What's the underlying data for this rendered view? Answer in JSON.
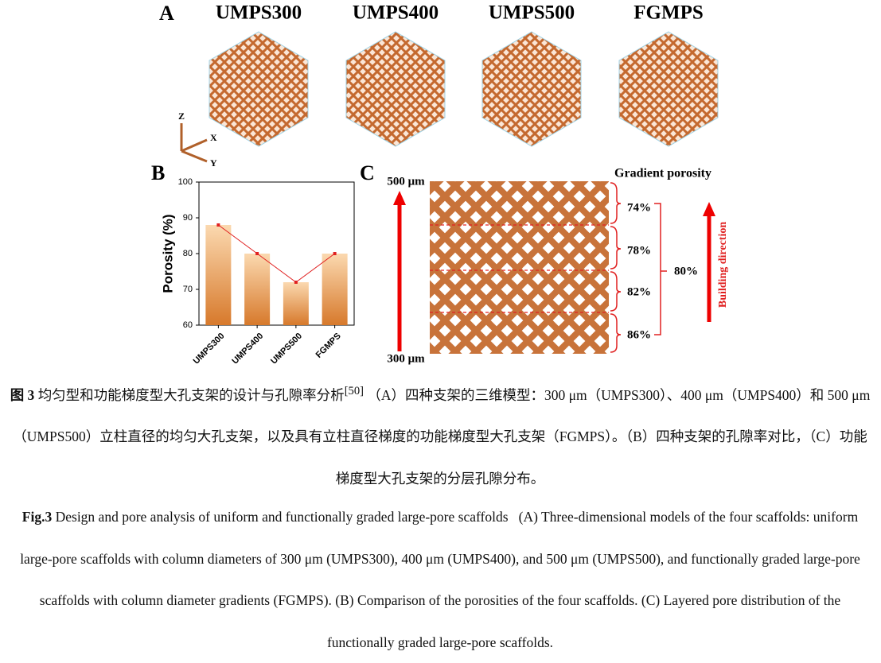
{
  "panel_a": {
    "label": "A",
    "titles": [
      "UMPS300",
      "UMPS400",
      "UMPS500",
      "FGMPS"
    ],
    "axes": [
      "Z",
      "X",
      "Y"
    ]
  },
  "chart_data": {
    "type": "bar",
    "label": "B",
    "ylabel": "Porosity (%)",
    "categories": [
      "UMPS300",
      "UMPS400",
      "UMPS500",
      "FGMPS"
    ],
    "values": [
      88,
      80,
      72,
      80
    ],
    "ylim": [
      60,
      100
    ],
    "yticks": [
      60,
      70,
      80,
      90,
      100
    ],
    "line_color": "#e02020"
  },
  "panel_c": {
    "label": "C",
    "top": "500 μm",
    "bottom": "300 μm",
    "title": "Gradient porosity",
    "layers": [
      "74%",
      "78%",
      "82%",
      "86%"
    ],
    "total": "80%",
    "direction": "Building direction"
  },
  "caption_cn": {
    "label": "图 3",
    "text": "均匀型和功能梯度型大孔支架的设计与孔隙率分析",
    "ref": "[50]",
    "body": "（A）四种支架的三维模型：300 μm（UMPS300）、400 μm（UMPS400）和 500 μm（UMPS500）立柱直径的均匀大孔支架，以及具有立柱直径梯度的功能梯度型大孔支架（FGMPS）。（B）四种支架的孔隙率对比，（C）功能梯度型大孔支架的分层孔隙分布。"
  },
  "caption_en": {
    "label": "Fig.3",
    "text": "Design and pore analysis of uniform and functionally graded large-pore scaffolds",
    "body": "(A) Three-dimensional models of the four scaffolds: uniform large-pore scaffolds with column diameters of 300 μm (UMPS300), 400 μm (UMPS400), and 500 μm (UMPS500), and functionally graded large-pore scaffolds with column diameter gradients (FGMPS). (B) Comparison of the porosities of the four scaffolds. (C) Layered pore distribution of the functionally graded large-pore scaffolds."
  }
}
